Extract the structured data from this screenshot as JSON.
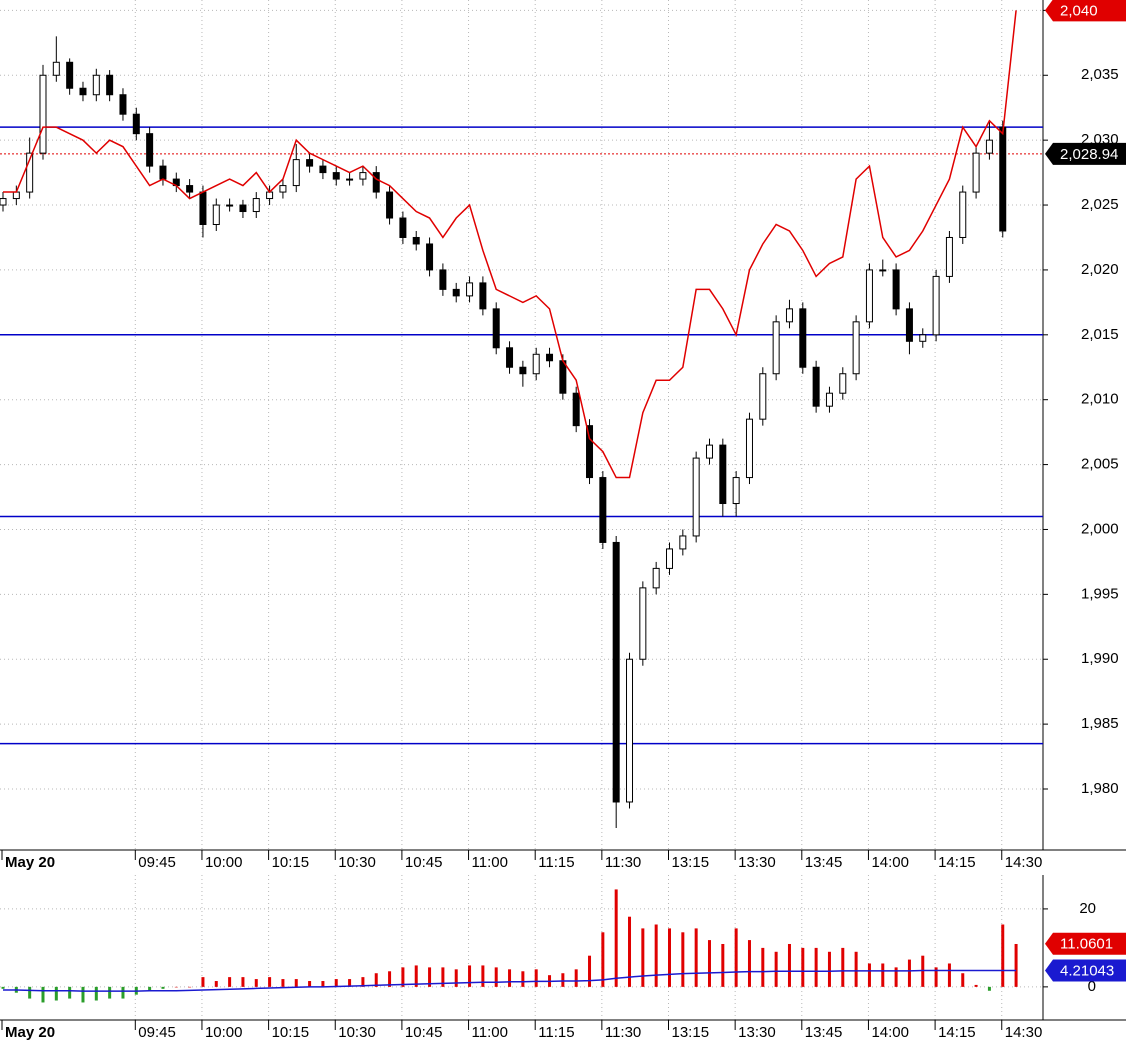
{
  "chart_data": [
    {
      "type": "candlestick",
      "categories": [
        "May 20",
        null,
        null,
        null,
        null,
        null,
        null,
        null,
        null,
        null,
        "09:45",
        null,
        null,
        null,
        null,
        "10:00",
        null,
        null,
        null,
        null,
        "10:15",
        null,
        null,
        null,
        null,
        "10:30",
        null,
        null,
        null,
        null,
        "10:45",
        null,
        null,
        null,
        null,
        "11:00",
        null,
        null,
        null,
        null,
        "11:15",
        null,
        null,
        null,
        null,
        "11:30",
        null,
        null,
        null,
        null,
        "13:15",
        null,
        null,
        null,
        null,
        "13:30",
        null,
        null,
        null,
        null,
        "13:45",
        null,
        null,
        null,
        null,
        "14:00",
        null,
        null,
        null,
        null,
        "14:15",
        null,
        null,
        null,
        null,
        "14:30",
        null
      ],
      "open": [
        2025,
        2025.5,
        2026,
        2029,
        2035,
        2036,
        2034,
        2033.5,
        2035,
        2033.5,
        2032,
        2030.5,
        2028,
        2027,
        2026.5,
        2026,
        2023.5,
        2025,
        2025,
        2024.5,
        2025.5,
        2026,
        2026.5,
        2028.5,
        2028,
        2027.5,
        2027,
        2027,
        2027.5,
        2026,
        2024,
        2022.5,
        2022,
        2020,
        2018.5,
        2018,
        2019,
        2017,
        2014,
        2012.5,
        2012,
        2013.5,
        2013,
        2010.5,
        2008,
        2004,
        1999,
        1979,
        1990,
        1995.5,
        1997,
        1998.5,
        1999.5,
        2005.5,
        2006.5,
        2002,
        2004,
        2008.5,
        2012,
        2016,
        2017,
        2012.5,
        2009.5,
        2010.5,
        2012,
        2016,
        2020,
        2020,
        2017,
        2014.5,
        2015,
        2019.5,
        2022.5,
        2026,
        2029,
        2031,
        null
      ],
      "high": [
        2026,
        2026.5,
        2030.2,
        2035.8,
        2038,
        2036.3,
        2034.5,
        2035.5,
        2035.4,
        2034,
        2032.5,
        2031,
        2028.5,
        2027.5,
        2027,
        2026.5,
        2025.5,
        2025.5,
        2025.4,
        2026,
        2026.5,
        2027,
        2029.7,
        2029,
        2028.5,
        2028,
        2027.5,
        2028,
        2028,
        2026.5,
        2024.5,
        2023,
        2022.5,
        2020.5,
        2019,
        2019.5,
        2019.5,
        2017.5,
        2014.5,
        2013,
        2014,
        2014,
        2013.5,
        2011,
        2008.5,
        2004.5,
        1999.5,
        1990.5,
        1996,
        1997.5,
        1999,
        2000,
        2006,
        2007,
        2007,
        2004.5,
        2009,
        2012.5,
        2016.5,
        2017.7,
        2017.5,
        2013,
        2011,
        2012.5,
        2016.5,
        2020.5,
        2020.8,
        2020.5,
        2017.5,
        2015.5,
        2020,
        2023,
        2026.5,
        2029.5,
        2031.5,
        2031.5,
        null
      ],
      "low": [
        2024.5,
        2025,
        2025.5,
        2028.5,
        2034.5,
        2033.5,
        2033,
        2033,
        2033,
        2031.5,
        2030,
        2027.5,
        2026.5,
        2026,
        2025.5,
        2022.5,
        2023,
        2024.5,
        2024,
        2024,
        2025,
        2025.5,
        2026,
        2027.5,
        2027,
        2026.5,
        2026.5,
        2026.5,
        2025.5,
        2023.5,
        2022,
        2021.5,
        2019.5,
        2018,
        2017.5,
        2017.5,
        2016.5,
        2013.5,
        2012,
        2011,
        2011.5,
        2012.5,
        2010,
        2007.5,
        2003.5,
        1998.5,
        1977,
        1978.5,
        1989.5,
        1995,
        1996.5,
        1998,
        1999,
        2005,
        2001,
        2001,
        2003.5,
        2008,
        2011.5,
        2015.5,
        2012,
        2009,
        2009,
        2010,
        2011.5,
        2015.5,
        2019.5,
        2016.5,
        2013.5,
        2014,
        2014.5,
        2019,
        2022,
        2025.5,
        2028.5,
        2022.5,
        null
      ],
      "close": [
        2025.5,
        2026,
        2029,
        2035,
        2036,
        2034,
        2033.5,
        2035,
        2033.5,
        2032,
        2030.5,
        2028,
        2027,
        2026.5,
        2026,
        2023.5,
        2025,
        2025,
        2024.5,
        2025.5,
        2026,
        2026.5,
        2028.5,
        2028,
        2027.5,
        2027,
        2027,
        2027.5,
        2026,
        2024,
        2022.5,
        2022,
        2020,
        2018.5,
        2018,
        2019,
        2017,
        2014,
        2012.5,
        2012,
        2013.5,
        2013,
        2010.5,
        2008,
        2004,
        1999,
        1979,
        1990,
        1995.5,
        1997,
        1998.5,
        1999.5,
        2005.5,
        2006.5,
        2002,
        2004,
        2008.5,
        2012,
        2016,
        2017,
        2012.5,
        2009.5,
        2010.5,
        2012,
        2016,
        2020,
        2020,
        2017,
        2014.5,
        2015,
        2019.5,
        2022.5,
        2026,
        2029,
        2030,
        2023,
        null
      ],
      "up_color": "#ffffff",
      "down_color": "#000000",
      "overlay": {
        "color": "#e00000",
        "values": [
          2026,
          2026,
          2028.5,
          2031,
          2031,
          2030.5,
          2030,
          2029,
          2030,
          2029.5,
          2028,
          2026.5,
          2027,
          2026.5,
          2025.5,
          2026,
          2026.5,
          2027,
          2026.5,
          2027.5,
          2026,
          2027,
          2030,
          2029,
          2028.5,
          2028,
          2027.5,
          2028,
          2027,
          2026.5,
          2025.5,
          2024.5,
          2024,
          2022.5,
          2024,
          2025,
          2021.5,
          2018.5,
          2018,
          2017.5,
          2018,
          2017,
          2013,
          2011.5,
          2007,
          2006,
          2004,
          2004,
          2009,
          2011.5,
          2011.5,
          2012.5,
          2018.5,
          2018.5,
          2017,
          2015,
          2020,
          2022,
          2023.5,
          2023,
          2021.5,
          2019.5,
          2020.5,
          2021,
          2027,
          2028,
          2022.5,
          2021,
          2021.5,
          2023,
          2025,
          2027,
          2031,
          2029.5,
          2031.5,
          2030.5,
          2040
        ]
      },
      "overlay_last": {
        "value": 2040,
        "label": "2,040"
      },
      "last_price": {
        "value": 2028.94,
        "label": "2,028.94"
      },
      "hlines": {
        "color": "#0000c8",
        "values": [
          2031,
          2015,
          2001,
          1983.5
        ]
      },
      "ylim": [
        1975.3,
        2040.8
      ],
      "yticks": [
        {
          "value": 1980,
          "label": "1,980"
        },
        {
          "value": 1985,
          "label": "1,985"
        },
        {
          "value": 1990,
          "label": "1,990"
        },
        {
          "value": 1995,
          "label": "1,995"
        },
        {
          "value": 2000,
          "label": "2,000"
        },
        {
          "value": 2005,
          "label": "2,005"
        },
        {
          "value": 2010,
          "label": "2,010"
        },
        {
          "value": 2015,
          "label": "2,015"
        },
        {
          "value": 2020,
          "label": "2,020"
        },
        {
          "value": 2025,
          "label": "2,025"
        },
        {
          "value": 2030,
          "label": "2,030"
        },
        {
          "value": 2035,
          "label": "2,035"
        },
        {
          "value": 2040,
          "label": "2,040"
        }
      ],
      "grid": true
    },
    {
      "type": "bar",
      "values": [
        -0.5,
        -1.5,
        -3,
        -4,
        -3.5,
        -3,
        -4,
        -3.5,
        -3,
        -3,
        -2,
        -1,
        -0.5,
        0,
        0,
        2.5,
        1.5,
        2.5,
        2.5,
        2,
        2.5,
        2,
        2,
        1.5,
        1.5,
        2,
        2,
        2.5,
        3.5,
        4,
        5,
        5.5,
        5,
        5,
        4.5,
        5.5,
        5.5,
        5,
        4.5,
        4,
        4.5,
        3,
        3.5,
        4.5,
        8,
        14,
        25,
        18,
        15,
        16,
        15,
        14,
        15,
        12,
        11,
        15,
        12,
        10,
        9,
        11,
        10,
        10,
        9,
        10,
        9,
        6,
        6,
        5,
        7,
        8,
        5,
        6,
        3.5,
        0.5,
        -1,
        16,
        11
      ],
      "positive_color": "#e00000",
      "negative_color": "#2a9d2a",
      "values_last": 11.0601,
      "line": {
        "color": "#1a1ad0",
        "values": [
          -0.8,
          -0.8,
          -0.9,
          -1,
          -1,
          -1,
          -1.1,
          -1.1,
          -1.1,
          -1.1,
          -1.1,
          -1,
          -1,
          -1,
          -0.9,
          -0.8,
          -0.7,
          -0.6,
          -0.5,
          -0.4,
          -0.3,
          -0.2,
          -0.1,
          0,
          0,
          0.1,
          0.2,
          0.3,
          0.4,
          0.5,
          0.6,
          0.7,
          0.8,
          0.9,
          1,
          1.1,
          1.2,
          1.2,
          1.3,
          1.3,
          1.4,
          1.4,
          1.5,
          1.5,
          1.6,
          1.8,
          2.2,
          2.5,
          2.8,
          3,
          3.2,
          3.4,
          3.5,
          3.6,
          3.7,
          3.8,
          3.9,
          3.9,
          4,
          4,
          4,
          4,
          4,
          4.1,
          4.1,
          4.1,
          4.1,
          4.1,
          4.1,
          4.2,
          4.2,
          4.2,
          4.2,
          4.2,
          4.2,
          4.2,
          4.21043
        ]
      },
      "line_last": 4.21043,
      "ylim": [
        -8.5,
        28.7
      ],
      "yticks": [
        0,
        20
      ],
      "grid": true
    }
  ]
}
